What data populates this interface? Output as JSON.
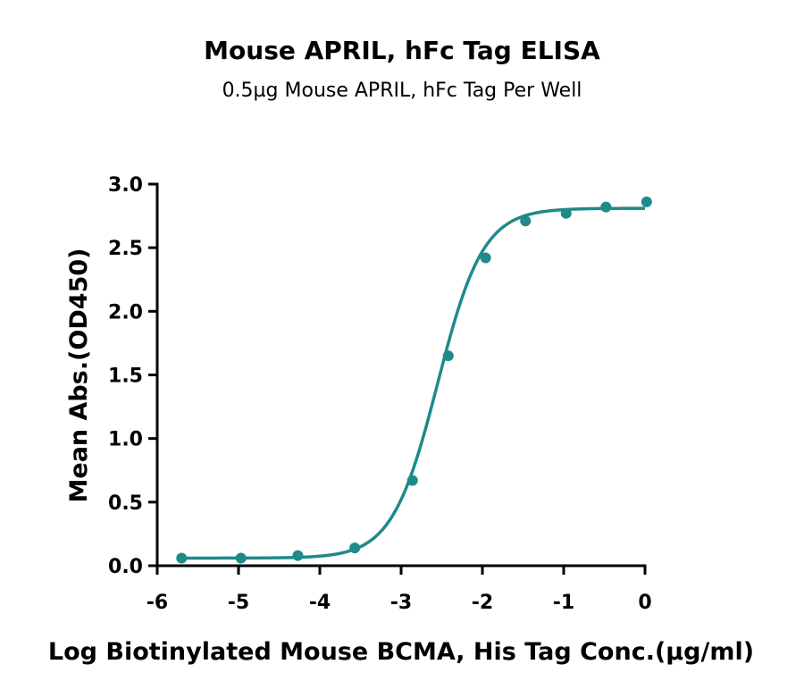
{
  "chart_data": {
    "type": "scatter",
    "title": "Mouse APRIL, hFc Tag ELISA",
    "subtitle": "0.5µg Mouse APRIL, hFc Tag Per Well",
    "xlabel": "Log Biotinylated Mouse BCMA, His Tag Conc.(µg/ml)",
    "ylabel": "Mean Abs.(OD450)",
    "xlim": [
      -6,
      0
    ],
    "ylim": [
      0,
      3.0
    ],
    "x_ticks": [
      -6,
      -5,
      -4,
      -3,
      -2,
      -1,
      0
    ],
    "x_tick_labels": [
      "-6",
      "-5",
      "-4",
      "-3",
      "-2",
      "-1",
      "0"
    ],
    "y_ticks": [
      0,
      0.5,
      1.0,
      1.5,
      2.0,
      2.5,
      3.0
    ],
    "y_tick_labels": [
      "0.0",
      "0.5",
      "1.0",
      "1.5",
      "2.0",
      "2.5",
      "3.0"
    ],
    "grid": false,
    "color": "#1f8a8a",
    "series": [
      {
        "x": [
          -5.7,
          -4.97,
          -4.27,
          -3.57,
          -2.86,
          -2.42,
          -1.96,
          -1.47,
          -0.97,
          -0.48,
          0.02
        ],
        "y": [
          0.06,
          0.06,
          0.08,
          0.14,
          0.67,
          1.65,
          2.42,
          2.71,
          2.77,
          2.82,
          2.86
        ]
      }
    ],
    "fit": {
      "model": "4PL",
      "bottom": 0.06,
      "top": 2.81,
      "logEC50": -2.55,
      "hill": 1.55
    }
  }
}
